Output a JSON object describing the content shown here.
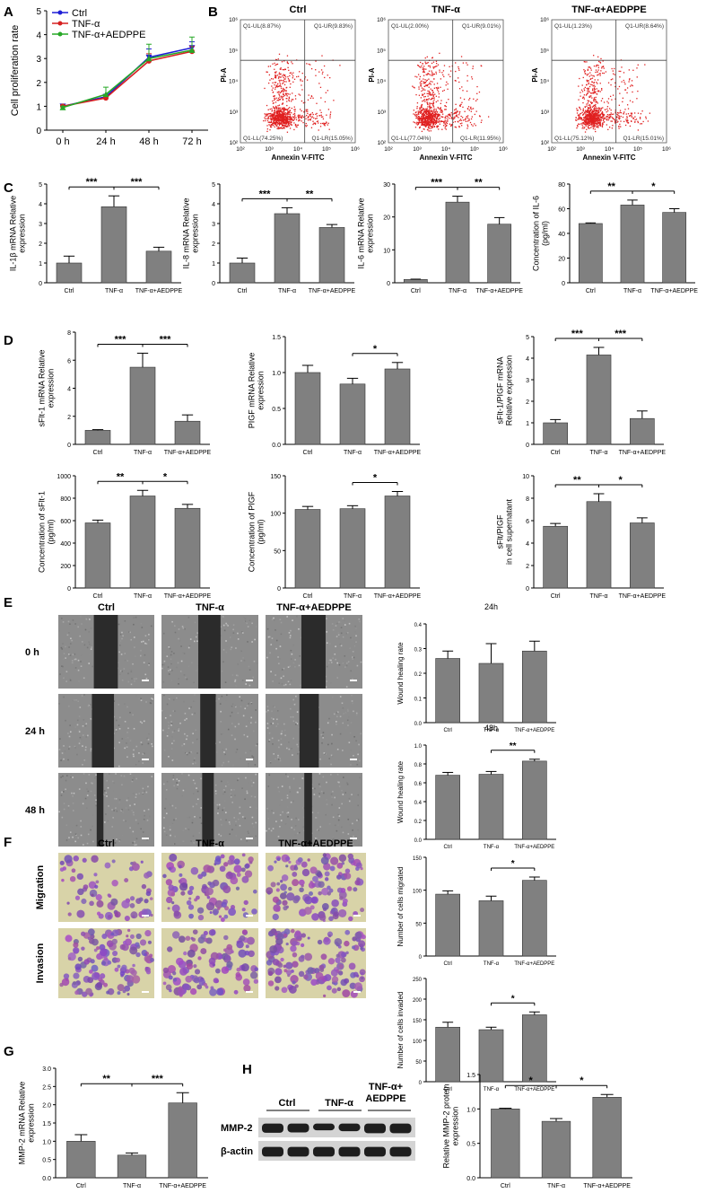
{
  "panel_labels": [
    "A",
    "B",
    "C",
    "D",
    "E",
    "F",
    "G",
    "H"
  ],
  "groups": [
    "Ctrl",
    "TNF-α",
    "TNF-α+AEDPPE"
  ],
  "colors": {
    "bar": "#808080",
    "ctrl_line": "#1f1fd6",
    "tnf_line": "#d62020",
    "aedppe_line": "#27a827",
    "flow_dot": "#e02020",
    "bg": "#ffffff"
  },
  "flow": {
    "titles": [
      "Ctrl",
      "TNF-α",
      "TNF-α+AEDPPE"
    ],
    "xlabel": "Annexin V-FITC",
    "ylabel": "PI-A",
    "xticks": [
      "10²",
      "10³",
      "10⁴",
      "10⁵",
      "10⁶"
    ],
    "yticks": [
      "10²",
      "10³",
      "10⁴",
      "10⁵",
      "10⁶"
    ],
    "quadrants": [
      {
        "UL": "Q1-UL(8.87%)",
        "UR": "Q1-UR(9.83%)",
        "LL": "Q1-LL(74.25%)",
        "LR": "Q1-LR(15.05%)"
      },
      {
        "UL": "Q1-UL(2.00%)",
        "UR": "Q1-UR(9.01%)",
        "LL": "Q1-LL(77.04%)",
        "LR": "Q1-LR(11.95%)"
      },
      {
        "UL": "Q1-UL(1.23%)",
        "UR": "Q1-UR(8.64%)",
        "LL": "Q1-LL(75.12%)",
        "LR": "Q1-LR(15.01%)"
      }
    ]
  },
  "images_E": {
    "col_titles": [
      "Ctrl",
      "TNF-α",
      "TNF-α+AEDPPE"
    ],
    "row_labels": [
      "0 h",
      "24 h",
      "48 h"
    ]
  },
  "images_F": {
    "col_titles": [
      "Ctrl",
      "TNF-α",
      "TNF-α+AEDPPE"
    ],
    "row_labels": [
      "Migration",
      "Invasion"
    ]
  },
  "blot": {
    "col_titles": [
      "Ctrl",
      "TNF-α",
      "TNF-α+\nAEDPPE"
    ],
    "rows": [
      "MMP-2",
      "β-actin"
    ]
  },
  "chart_data": [
    {
      "id": "A",
      "type": "line",
      "ylabel": "Cell proliferation rate",
      "categories": [
        "0 h",
        "24 h",
        "48 h",
        "72 h"
      ],
      "ylim": [
        0,
        5
      ],
      "yticks": [
        0,
        1,
        2,
        3,
        4,
        5
      ],
      "series": [
        {
          "name": "Ctrl",
          "values": [
            1.0,
            1.4,
            3.05,
            3.45
          ],
          "err": [
            0.05,
            0.1,
            0.35,
            0.25
          ]
        },
        {
          "name": "TNF-α",
          "values": [
            1.0,
            1.35,
            2.9,
            3.3
          ],
          "err": [
            0.05,
            0.1,
            0.3,
            0.2
          ]
        },
        {
          "name": "TNF-α+AEDPPE",
          "values": [
            0.95,
            1.5,
            3.0,
            3.35
          ],
          "err": [
            0.05,
            0.3,
            0.6,
            0.55
          ]
        }
      ]
    },
    {
      "id": "C1",
      "type": "bar",
      "ylabel": "IL-1β mRNA Relative\nexpression",
      "categories": [
        "Ctrl",
        "TNF-α",
        "TNF-α+AEDPPE"
      ],
      "values": [
        1.0,
        3.85,
        1.6
      ],
      "err": [
        0.35,
        0.55,
        0.2
      ],
      "ylim": [
        0,
        5
      ],
      "yticks": [
        0,
        1,
        2,
        3,
        4,
        5
      ],
      "sig": [
        {
          "a": 0,
          "b": 1,
          "label": "***"
        },
        {
          "a": 1,
          "b": 2,
          "label": "***"
        }
      ]
    },
    {
      "id": "C2",
      "type": "bar",
      "ylabel": "IL-8 mRNA Relative\nexpression",
      "categories": [
        "Ctrl",
        "TNF-α",
        "TNF-α+AEDPPE"
      ],
      "values": [
        1.0,
        3.5,
        2.8
      ],
      "err": [
        0.25,
        0.3,
        0.15
      ],
      "ylim": [
        0,
        5
      ],
      "yticks": [
        0,
        1,
        2,
        3,
        4,
        5
      ],
      "sig": [
        {
          "a": 0,
          "b": 1,
          "label": "***"
        },
        {
          "a": 1,
          "b": 2,
          "label": "**"
        }
      ]
    },
    {
      "id": "C3",
      "type": "bar",
      "ylabel": "IL-6 mRNA Relative\nexpression",
      "categories": [
        "Ctrl",
        "TNF-α",
        "TNF-α+AEDPPE"
      ],
      "values": [
        1.0,
        24.5,
        17.8
      ],
      "err": [
        0.1,
        1.8,
        2.0
      ],
      "ylim": [
        0,
        30
      ],
      "yticks": [
        0,
        10,
        20,
        30
      ],
      "sig": [
        {
          "a": 0,
          "b": 1,
          "label": "***"
        },
        {
          "a": 1,
          "b": 2,
          "label": "**"
        }
      ]
    },
    {
      "id": "C4",
      "type": "bar",
      "ylabel": "Concentration of IL-6\n(pg/ml)",
      "categories": [
        "Ctrl",
        "TNF-α",
        "TNF-α+AEDPPE"
      ],
      "values": [
        48,
        63,
        57
      ],
      "err": [
        0.5,
        4,
        3
      ],
      "ylim": [
        0,
        80
      ],
      "yticks": [
        0,
        20,
        40,
        60,
        80
      ],
      "sig": [
        {
          "a": 0,
          "b": 1,
          "label": "**"
        },
        {
          "a": 1,
          "b": 2,
          "label": "*"
        }
      ]
    },
    {
      "id": "D1",
      "type": "bar",
      "ylabel": "sFlt-1 mRNA Relative\nexpression",
      "categories": [
        "Ctrl",
        "TNF-α",
        "TNF-α+AEDPPE"
      ],
      "values": [
        1.0,
        5.5,
        1.65
      ],
      "err": [
        0.05,
        1.0,
        0.45
      ],
      "ylim": [
        0,
        8
      ],
      "yticks": [
        0,
        2,
        4,
        6,
        8
      ],
      "sig": [
        {
          "a": 0,
          "b": 1,
          "label": "***"
        },
        {
          "a": 1,
          "b": 2,
          "label": "***"
        }
      ]
    },
    {
      "id": "D2",
      "type": "bar",
      "ylabel": "PIGF mRNA Relative\nexpression",
      "categories": [
        "Ctrl",
        "TNF-α",
        "TNF-α+AEDPPE"
      ],
      "values": [
        1.0,
        0.84,
        1.05
      ],
      "err": [
        0.1,
        0.08,
        0.09
      ],
      "ylim": [
        0,
        1.5
      ],
      "yticks": [
        0,
        0.5,
        1.0,
        1.5
      ],
      "sig": [
        {
          "a": 1,
          "b": 2,
          "label": "*"
        }
      ]
    },
    {
      "id": "D3",
      "type": "bar",
      "ylabel": "sFlt-1/PIGF mRNA\nRelative expression",
      "categories": [
        "Ctrl",
        "TNF-α",
        "TNF-α+AEDPPE"
      ],
      "values": [
        1.0,
        4.15,
        1.2
      ],
      "err": [
        0.15,
        0.35,
        0.35
      ],
      "ylim": [
        0,
        5
      ],
      "yticks": [
        0,
        1,
        2,
        3,
        4,
        5
      ],
      "sig": [
        {
          "a": 0,
          "b": 1,
          "label": "***"
        },
        {
          "a": 1,
          "b": 2,
          "label": "***"
        }
      ]
    },
    {
      "id": "D4",
      "type": "bar",
      "ylabel": "Concentration of sFlt-1\n(pg/ml)",
      "categories": [
        "Ctrl",
        "TNF-α",
        "TNF-α+AEDPPE"
      ],
      "values": [
        580,
        820,
        710
      ],
      "err": [
        25,
        50,
        35
      ],
      "ylim": [
        0,
        1000
      ],
      "yticks": [
        0,
        200,
        400,
        600,
        800,
        1000
      ],
      "sig": [
        {
          "a": 0,
          "b": 1,
          "label": "**"
        },
        {
          "a": 1,
          "b": 2,
          "label": "*"
        }
      ]
    },
    {
      "id": "D5",
      "type": "bar",
      "ylabel": "Concentration of PIGF\n(pg/ml)",
      "categories": [
        "Ctrl",
        "TNF-α",
        "TNF-α+AEDPPE"
      ],
      "values": [
        105,
        106,
        123
      ],
      "err": [
        4,
        4,
        6
      ],
      "ylim": [
        0,
        150
      ],
      "yticks": [
        0,
        50,
        100,
        150
      ],
      "sig": [
        {
          "a": 1,
          "b": 2,
          "label": "*"
        }
      ]
    },
    {
      "id": "D6",
      "type": "bar",
      "ylabel": "sFlt/PIGF\nin cell supernatant",
      "categories": [
        "Ctrl",
        "TNF-α",
        "TNF-α+AEDPPE"
      ],
      "values": [
        5.5,
        7.7,
        5.8
      ],
      "err": [
        0.25,
        0.7,
        0.45
      ],
      "ylim": [
        0,
        10
      ],
      "yticks": [
        0,
        2,
        4,
        6,
        8,
        10
      ],
      "sig": [
        {
          "a": 0,
          "b": 1,
          "label": "**"
        },
        {
          "a": 1,
          "b": 2,
          "label": "*"
        }
      ]
    },
    {
      "id": "E1",
      "type": "bar",
      "title": "24h",
      "ylabel": "Wound healing rate",
      "categories": [
        "Ctrl",
        "TNF-α",
        "TNF-α+AEDPPE"
      ],
      "values": [
        0.26,
        0.24,
        0.29
      ],
      "err": [
        0.03,
        0.08,
        0.04
      ],
      "ylim": [
        0,
        0.4
      ],
      "yticks": [
        0.0,
        0.1,
        0.2,
        0.3,
        0.4
      ],
      "sig": []
    },
    {
      "id": "E2",
      "type": "bar",
      "title": "48h",
      "ylabel": "Wound healing rate",
      "categories": [
        "Ctrl",
        "TNF-α",
        "TNF-α+AEDPPE"
      ],
      "values": [
        0.68,
        0.69,
        0.83
      ],
      "err": [
        0.03,
        0.03,
        0.02
      ],
      "ylim": [
        0,
        1.0
      ],
      "yticks": [
        0.0,
        0.2,
        0.4,
        0.6,
        0.8,
        1.0
      ],
      "sig": [
        {
          "a": 1,
          "b": 2,
          "label": "**"
        }
      ]
    },
    {
      "id": "F1",
      "type": "bar",
      "ylabel": "Number of cells migrated",
      "categories": [
        "Ctrl",
        "TNF-α",
        "TNF-α+AEDPPE"
      ],
      "values": [
        94,
        84,
        115
      ],
      "err": [
        5,
        7,
        5
      ],
      "ylim": [
        0,
        150
      ],
      "yticks": [
        0,
        50,
        100,
        150
      ],
      "sig": [
        {
          "a": 1,
          "b": 2,
          "label": "*"
        }
      ]
    },
    {
      "id": "F2",
      "type": "bar",
      "ylabel": "Number of cells invaded",
      "categories": [
        "Ctrl",
        "TNF-α",
        "TNF-α+AEDPPE"
      ],
      "values": [
        132,
        126,
        162
      ],
      "err": [
        12,
        6,
        7
      ],
      "ylim": [
        0,
        250
      ],
      "yticks": [
        0,
        50,
        100,
        150,
        200,
        250
      ],
      "sig": [
        {
          "a": 1,
          "b": 2,
          "label": "*"
        }
      ]
    },
    {
      "id": "G",
      "type": "bar",
      "ylabel": "MMP-2 mRNA Relative\nexpression",
      "categories": [
        "Ctrl",
        "TNF-α",
        "TNF-α+AEDPPE"
      ],
      "values": [
        1.0,
        0.62,
        2.05
      ],
      "err": [
        0.18,
        0.06,
        0.28
      ],
      "ylim": [
        0,
        3.0
      ],
      "yticks": [
        0,
        0.5,
        1.0,
        1.5,
        2.0,
        2.5,
        3.0
      ],
      "sig": [
        {
          "a": 0,
          "b": 1,
          "label": "**"
        },
        {
          "a": 1,
          "b": 2,
          "label": "***"
        }
      ]
    },
    {
      "id": "H",
      "type": "bar",
      "ylabel": "Relative MMP-2 protein\nexpression",
      "categories": [
        "Ctrl",
        "TNF-α",
        "TNF-α+AEDPPE"
      ],
      "values": [
        1.0,
        0.82,
        1.17
      ],
      "err": [
        0.01,
        0.04,
        0.04
      ],
      "ylim": [
        0,
        1.5
      ],
      "yticks": [
        0.0,
        0.5,
        1.0,
        1.5
      ],
      "sig": [
        {
          "a": 0,
          "b": 1,
          "label": "*"
        },
        {
          "a": 1,
          "b": 2,
          "label": "*"
        }
      ]
    }
  ]
}
